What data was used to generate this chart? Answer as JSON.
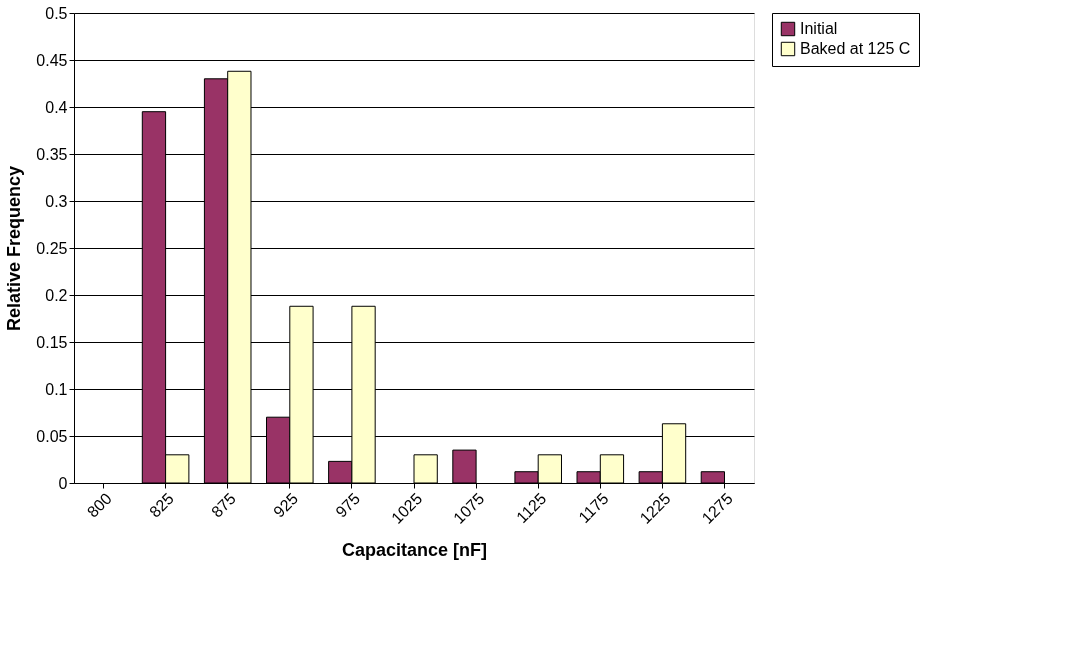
{
  "chart_data": {
    "type": "bar",
    "xlabel": "Capacitance [nF]",
    "ylabel": "Relative Frequency",
    "categories": [
      "800",
      "825",
      "875",
      "925",
      "975",
      "1025",
      "1075",
      "1125",
      "1175",
      "1225",
      "1275"
    ],
    "series": [
      {
        "name": "Initial",
        "color": "#993366",
        "values": [
          null,
          0.395,
          0.43,
          0.07,
          0.023,
          null,
          0.035,
          0.012,
          0.012,
          0.012,
          0.012
        ]
      },
      {
        "name": "Baked at 125 C",
        "color": "#ffffcc",
        "values": [
          null,
          0.03,
          0.438,
          0.188,
          0.188,
          0.03,
          null,
          0.03,
          0.03,
          0.063,
          null
        ]
      }
    ],
    "ylim": [
      0,
      0.5
    ],
    "yticks": [
      0,
      0.05,
      0.1,
      0.15,
      0.2,
      0.25,
      0.3,
      0.35,
      0.4,
      0.45,
      0.5
    ],
    "grid": "y",
    "legend": "right"
  }
}
